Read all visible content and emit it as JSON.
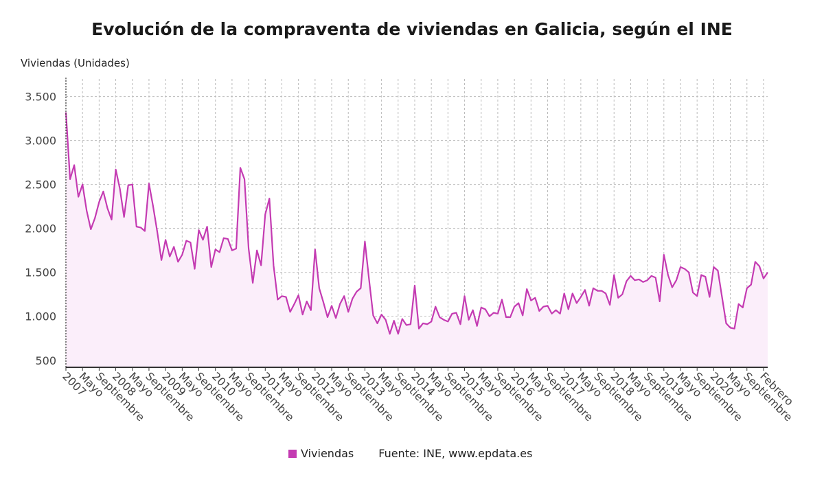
{
  "chart_data": {
    "type": "area",
    "title": "Evolución de la compraventa de viviendas en Galicia, según el INE",
    "ylabel": "Viviendas (Unidades)",
    "ylim": [
      420,
      3700
    ],
    "yticks": [
      500,
      1000,
      1500,
      2000,
      2500,
      3000,
      3500
    ],
    "ytick_labels": [
      "500",
      "1.000",
      "1.500",
      "2.000",
      "2.500",
      "3.000",
      "3.500"
    ],
    "grid": true,
    "legend_position": "bottom",
    "line_color": "#c43bb2",
    "fill_color": "#fbeefa",
    "x_start": "2007-01",
    "x_end": "2021-02",
    "xtick_labels": [
      "2007",
      "Mayo",
      "Septiembre",
      "2008",
      "Mayo",
      "Septiembre",
      "2009",
      "Mayo",
      "Septiembre",
      "2010",
      "Mayo",
      "Septiembre",
      "2011",
      "Mayo",
      "Septiembre",
      "2012",
      "Mayo",
      "Septiembre",
      "2013",
      "Mayo",
      "Septiembre",
      "2014",
      "Mayo",
      "Septiembre",
      "2015",
      "Mayo",
      "Septiembre",
      "2016",
      "Mayo",
      "Septiembre",
      "2017",
      "Mayo",
      "Septiembre",
      "2018",
      "Mayo",
      "Septiembre",
      "2019",
      "Mayo",
      "Septiembre",
      "2020",
      "Mayo",
      "Septiembre",
      "Febrero"
    ],
    "series": [
      {
        "name": "Viviendas",
        "values": [
          3320,
          2560,
          2720,
          2360,
          2500,
          2200,
          1990,
          2120,
          2300,
          2420,
          2230,
          2100,
          2670,
          2450,
          2130,
          2490,
          2500,
          2020,
          2010,
          1970,
          2510,
          2250,
          1960,
          1640,
          1870,
          1680,
          1790,
          1620,
          1700,
          1860,
          1840,
          1540,
          1980,
          1870,
          2020,
          1560,
          1760,
          1730,
          1890,
          1880,
          1750,
          1770,
          2690,
          2560,
          1770,
          1380,
          1750,
          1580,
          2160,
          2340,
          1580,
          1190,
          1230,
          1220,
          1050,
          1140,
          1240,
          1020,
          1170,
          1070,
          1760,
          1320,
          1160,
          990,
          1120,
          980,
          1140,
          1230,
          1050,
          1200,
          1280,
          1320,
          1850,
          1420,
          1010,
          920,
          1020,
          960,
          800,
          950,
          800,
          970,
          900,
          910,
          1350,
          860,
          920,
          910,
          940,
          1110,
          990,
          960,
          940,
          1030,
          1040,
          910,
          1230,
          960,
          1070,
          890,
          1100,
          1080,
          1000,
          1040,
          1030,
          1190,
          990,
          990,
          1110,
          1150,
          1010,
          1310,
          1180,
          1210,
          1060,
          1110,
          1120,
          1030,
          1070,
          1030,
          1260,
          1080,
          1260,
          1150,
          1220,
          1300,
          1120,
          1320,
          1290,
          1290,
          1260,
          1130,
          1470,
          1210,
          1250,
          1400,
          1460,
          1410,
          1420,
          1390,
          1410,
          1460,
          1440,
          1170,
          1700,
          1470,
          1330,
          1410,
          1560,
          1540,
          1500,
          1270,
          1230,
          1470,
          1450,
          1220,
          1560,
          1520,
          1220,
          920,
          870,
          860,
          1140,
          1100,
          1320,
          1360,
          1620,
          1570,
          1430,
          1500
        ]
      }
    ],
    "source": "Fuente: INE, www.epdata.es"
  }
}
